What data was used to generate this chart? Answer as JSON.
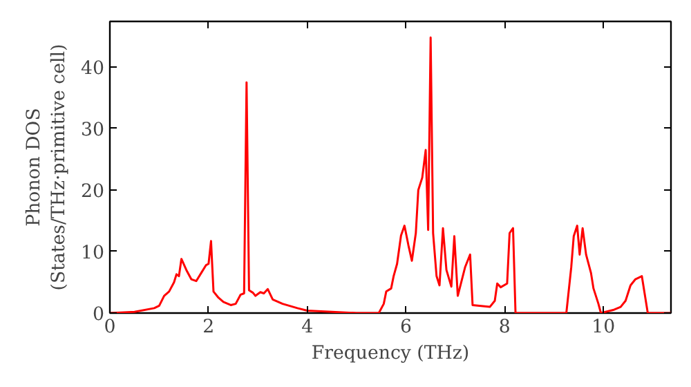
{
  "chart_data": {
    "type": "line",
    "xlabel": "Frequency (THz)",
    "ylabel": "Phonon DOS\n(States/THz·primitive cell)",
    "xlim": [
      0,
      11.37
    ],
    "ylim": [
      0,
      47.4
    ],
    "xticks": [
      0,
      2,
      4,
      6,
      8,
      10
    ],
    "yticks": [
      0,
      10,
      20,
      30,
      40
    ],
    "grid": false,
    "marker": "none",
    "line_style": "solid",
    "series": [
      {
        "color": "#ff0000",
        "x": [
          0,
          0.5,
          0.9,
          1.0,
          1.1,
          1.2,
          1.3,
          1.35,
          1.4,
          1.45,
          1.55,
          1.65,
          1.75,
          1.85,
          1.95,
          2.0,
          2.05,
          2.1,
          2.2,
          2.3,
          2.45,
          2.55,
          2.65,
          2.72,
          2.77,
          2.82,
          2.9,
          2.95,
          3.05,
          3.12,
          3.2,
          3.3,
          3.5,
          3.8,
          4.0,
          4.5,
          5.0,
          5.45,
          5.55,
          5.6,
          5.7,
          5.75,
          5.82,
          5.9,
          5.97,
          6.05,
          6.12,
          6.2,
          6.25,
          6.33,
          6.4,
          6.45,
          6.5,
          6.55,
          6.62,
          6.68,
          6.75,
          6.82,
          6.92,
          6.98,
          7.05,
          7.2,
          7.3,
          7.35,
          7.7,
          7.8,
          7.85,
          7.92,
          8.05,
          8.1,
          8.17,
          8.22,
          9.25,
          9.35,
          9.4,
          9.47,
          9.52,
          9.58,
          9.65,
          9.75,
          9.8,
          9.9,
          9.95,
          10.2,
          10.35,
          10.45,
          10.55,
          10.65,
          10.78,
          10.9,
          11.37
        ],
        "values": [
          0,
          0.2,
          0.8,
          1.2,
          2.8,
          3.5,
          5,
          6.3,
          6,
          8.8,
          7,
          5.5,
          5.2,
          6.5,
          7.8,
          8,
          11.7,
          3.5,
          2.5,
          1.8,
          1.3,
          1.5,
          3,
          3.2,
          37.5,
          3.7,
          3.3,
          2.8,
          3.4,
          3.2,
          3.9,
          2.2,
          1.5,
          0.8,
          0.4,
          0.2,
          0,
          0,
          1.5,
          3.5,
          4,
          6,
          8,
          12.6,
          14.2,
          11,
          8.5,
          13,
          20,
          22,
          26.5,
          13.5,
          44.8,
          13,
          6,
          4.5,
          13.8,
          7,
          4.3,
          12.5,
          2.8,
          7.5,
          9.5,
          1.3,
          1,
          2,
          4.8,
          4.2,
          4.8,
          13,
          13.8,
          0,
          0,
          7.5,
          12.5,
          14.2,
          9.5,
          13.8,
          9.5,
          6.5,
          4,
          1.5,
          0,
          0.5,
          1,
          2,
          4.5,
          5.5,
          6,
          0,
          0
        ]
      }
    ]
  }
}
